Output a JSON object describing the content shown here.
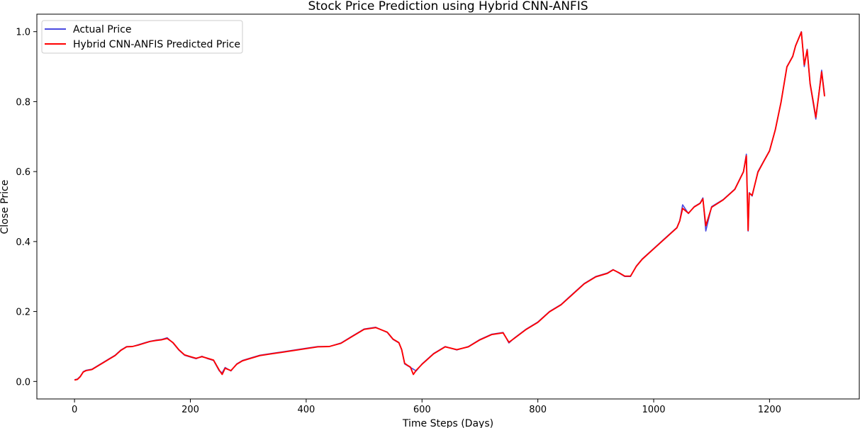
{
  "chart_data": {
    "type": "line",
    "title": "Stock Price Prediction using Hybrid CNN-ANFIS",
    "xlabel": "Time Steps (Days)",
    "ylabel": "Close Price",
    "xlim": [
      -65,
      1355
    ],
    "ylim": [
      -0.05,
      1.05
    ],
    "xticks": [
      0,
      200,
      400,
      600,
      800,
      1000,
      1200
    ],
    "yticks": [
      0.0,
      0.2,
      0.4,
      0.6,
      0.8,
      1.0
    ],
    "grid": false,
    "legend_position": "top-left",
    "series": [
      {
        "name": "Actual Price",
        "color": "#4a4ae0",
        "x": [
          0,
          5,
          10,
          15,
          20,
          30,
          40,
          50,
          60,
          70,
          80,
          90,
          100,
          110,
          120,
          130,
          140,
          150,
          160,
          170,
          180,
          190,
          200,
          210,
          220,
          230,
          240,
          250,
          255,
          260,
          270,
          280,
          290,
          300,
          320,
          340,
          360,
          380,
          400,
          420,
          440,
          460,
          480,
          500,
          520,
          540,
          550,
          560,
          565,
          570,
          575,
          580,
          585,
          590,
          600,
          620,
          640,
          660,
          680,
          700,
          720,
          740,
          750,
          760,
          780,
          800,
          820,
          840,
          860,
          880,
          900,
          920,
          930,
          940,
          950,
          960,
          970,
          980,
          1000,
          1020,
          1040,
          1045,
          1050,
          1060,
          1070,
          1080,
          1085,
          1090,
          1100,
          1120,
          1140,
          1155,
          1160,
          1163,
          1165,
          1170,
          1180,
          1190,
          1200,
          1210,
          1220,
          1230,
          1240,
          1245,
          1250,
          1255,
          1260,
          1265,
          1270,
          1275,
          1280,
          1285,
          1290,
          1295
        ],
        "values": [
          0.005,
          0.007,
          0.015,
          0.028,
          0.032,
          0.035,
          0.045,
          0.055,
          0.065,
          0.075,
          0.09,
          0.1,
          0.1,
          0.105,
          0.11,
          0.115,
          0.118,
          0.12,
          0.125,
          0.11,
          0.09,
          0.075,
          0.07,
          0.065,
          0.072,
          0.065,
          0.06,
          0.03,
          0.025,
          0.04,
          0.03,
          0.05,
          0.06,
          0.065,
          0.075,
          0.08,
          0.085,
          0.09,
          0.095,
          0.1,
          0.1,
          0.11,
          0.13,
          0.15,
          0.155,
          0.14,
          0.12,
          0.11,
          0.09,
          0.05,
          0.045,
          0.04,
          0.035,
          0.03,
          0.05,
          0.08,
          0.1,
          0.09,
          0.1,
          0.12,
          0.135,
          0.14,
          0.11,
          0.125,
          0.15,
          0.17,
          0.2,
          0.22,
          0.25,
          0.28,
          0.3,
          0.31,
          0.32,
          0.31,
          0.3,
          0.3,
          0.33,
          0.35,
          0.38,
          0.41,
          0.44,
          0.46,
          0.505,
          0.48,
          0.5,
          0.51,
          0.525,
          0.43,
          0.5,
          0.52,
          0.55,
          0.6,
          0.65,
          0.43,
          0.54,
          0.53,
          0.6,
          0.63,
          0.66,
          0.72,
          0.8,
          0.9,
          0.93,
          0.96,
          0.98,
          1.0,
          0.9,
          0.95,
          0.85,
          0.8,
          0.75,
          0.82,
          0.89,
          0.82
        ]
      },
      {
        "name": "Hybrid CNN-ANFIS Predicted Price",
        "color": "#ff0000",
        "x": [
          0,
          5,
          10,
          15,
          20,
          30,
          40,
          50,
          60,
          70,
          80,
          90,
          100,
          110,
          120,
          130,
          140,
          150,
          160,
          170,
          180,
          190,
          200,
          210,
          220,
          230,
          240,
          250,
          255,
          260,
          270,
          280,
          290,
          300,
          320,
          340,
          360,
          380,
          400,
          420,
          440,
          460,
          480,
          500,
          520,
          540,
          550,
          560,
          565,
          570,
          575,
          580,
          585,
          590,
          600,
          620,
          640,
          660,
          680,
          700,
          720,
          740,
          750,
          760,
          780,
          800,
          820,
          840,
          860,
          880,
          900,
          920,
          930,
          940,
          950,
          960,
          970,
          980,
          1000,
          1020,
          1040,
          1045,
          1050,
          1060,
          1070,
          1080,
          1085,
          1090,
          1100,
          1120,
          1140,
          1155,
          1160,
          1163,
          1165,
          1170,
          1180,
          1190,
          1200,
          1210,
          1220,
          1230,
          1240,
          1245,
          1250,
          1255,
          1260,
          1265,
          1270,
          1275,
          1280,
          1285,
          1290,
          1295
        ],
        "values": [
          0.004,
          0.006,
          0.014,
          0.027,
          0.031,
          0.034,
          0.044,
          0.054,
          0.064,
          0.074,
          0.089,
          0.099,
          0.1,
          0.104,
          0.109,
          0.114,
          0.117,
          0.119,
          0.123,
          0.111,
          0.091,
          0.076,
          0.071,
          0.066,
          0.071,
          0.066,
          0.061,
          0.032,
          0.02,
          0.038,
          0.031,
          0.049,
          0.059,
          0.064,
          0.074,
          0.079,
          0.084,
          0.089,
          0.094,
          0.099,
          0.1,
          0.109,
          0.129,
          0.149,
          0.154,
          0.141,
          0.121,
          0.111,
          0.091,
          0.052,
          0.046,
          0.041,
          0.02,
          0.032,
          0.049,
          0.079,
          0.099,
          0.091,
          0.099,
          0.119,
          0.134,
          0.139,
          0.112,
          0.124,
          0.149,
          0.169,
          0.199,
          0.219,
          0.249,
          0.279,
          0.299,
          0.309,
          0.319,
          0.311,
          0.301,
          0.301,
          0.329,
          0.349,
          0.379,
          0.409,
          0.439,
          0.459,
          0.495,
          0.481,
          0.499,
          0.509,
          0.522,
          0.445,
          0.498,
          0.519,
          0.549,
          0.599,
          0.645,
          0.432,
          0.538,
          0.532,
          0.598,
          0.629,
          0.659,
          0.719,
          0.799,
          0.899,
          0.929,
          0.959,
          0.979,
          0.999,
          0.905,
          0.948,
          0.852,
          0.805,
          0.755,
          0.818,
          0.885,
          0.815
        ]
      }
    ]
  }
}
